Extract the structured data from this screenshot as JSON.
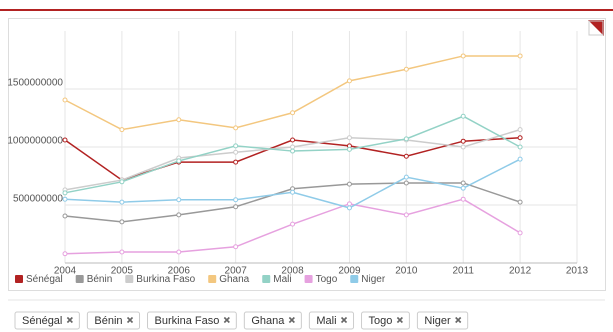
{
  "chart_data": {
    "type": "line",
    "x": [
      2004,
      2005,
      2006,
      2007,
      2008,
      2009,
      2010,
      2011,
      2012
    ],
    "xlim": [
      2004,
      2013
    ],
    "xticks": [
      2004,
      2005,
      2006,
      2007,
      2008,
      2009,
      2010,
      2011,
      2012,
      2013
    ],
    "ylim": [
      0,
      2000000000
    ],
    "yticks": [
      500000000,
      1000000000,
      1500000000
    ],
    "grid": true,
    "legend": "bottom-left",
    "series": [
      {
        "name": "Sénégal",
        "color": "#b22222",
        "values": [
          1060000000,
          715000000,
          870000000,
          870000000,
          1060000000,
          1010000000,
          920000000,
          1050000000,
          1080000000
        ]
      },
      {
        "name": "Bénin",
        "color": "#999999",
        "values": [
          405000000,
          355000000,
          415000000,
          485000000,
          640000000,
          680000000,
          690000000,
          690000000,
          525000000
        ]
      },
      {
        "name": "Burkina Faso",
        "color": "#cccccc",
        "values": [
          630000000,
          715000000,
          905000000,
          955000000,
          1000000000,
          1080000000,
          1060000000,
          1000000000,
          1150000000
        ]
      },
      {
        "name": "Ghana",
        "color": "#f3c77f",
        "values": [
          1405000000,
          1150000000,
          1235000000,
          1165000000,
          1295000000,
          1570000000,
          1670000000,
          1785000000,
          1785000000
        ]
      },
      {
        "name": "Mali",
        "color": "#93d2c6",
        "values": [
          605000000,
          700000000,
          880000000,
          1010000000,
          965000000,
          980000000,
          1070000000,
          1265000000,
          1000000000
        ]
      },
      {
        "name": "Togo",
        "color": "#e6a1df",
        "values": [
          80000000,
          95000000,
          95000000,
          140000000,
          335000000,
          510000000,
          415000000,
          550000000,
          260000000
        ]
      },
      {
        "name": "Niger",
        "color": "#8fcbe8",
        "values": [
          550000000,
          525000000,
          545000000,
          545000000,
          610000000,
          475000000,
          740000000,
          645000000,
          895000000
        ]
      }
    ]
  }
}
